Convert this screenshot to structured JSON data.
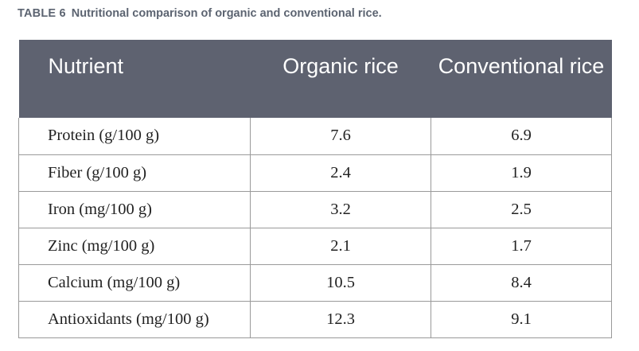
{
  "caption": {
    "label": "TABLE 6",
    "text": "Nutritional comparison of organic and conventional rice."
  },
  "table": {
    "headers": [
      "Nutrient",
      "Organic rice",
      "Conventional rice"
    ],
    "rows": [
      [
        "Protein (g/100 g)",
        "7.6",
        "6.9"
      ],
      [
        "Fiber (g/100 g)",
        "2.4",
        "1.9"
      ],
      [
        "Iron (mg/100 g)",
        "3.2",
        "2.5"
      ],
      [
        "Zinc (mg/100 g)",
        "2.1",
        "1.7"
      ],
      [
        "Calcium (mg/100 g)",
        "10.5",
        "8.4"
      ],
      [
        "Antioxidants (mg/100 g)",
        "12.3",
        "9.1"
      ]
    ]
  },
  "colors": {
    "header_background": "#5e6270",
    "header_text": "#ffffff",
    "caption_text": "#5c6471",
    "border": "#9a9a9a"
  }
}
